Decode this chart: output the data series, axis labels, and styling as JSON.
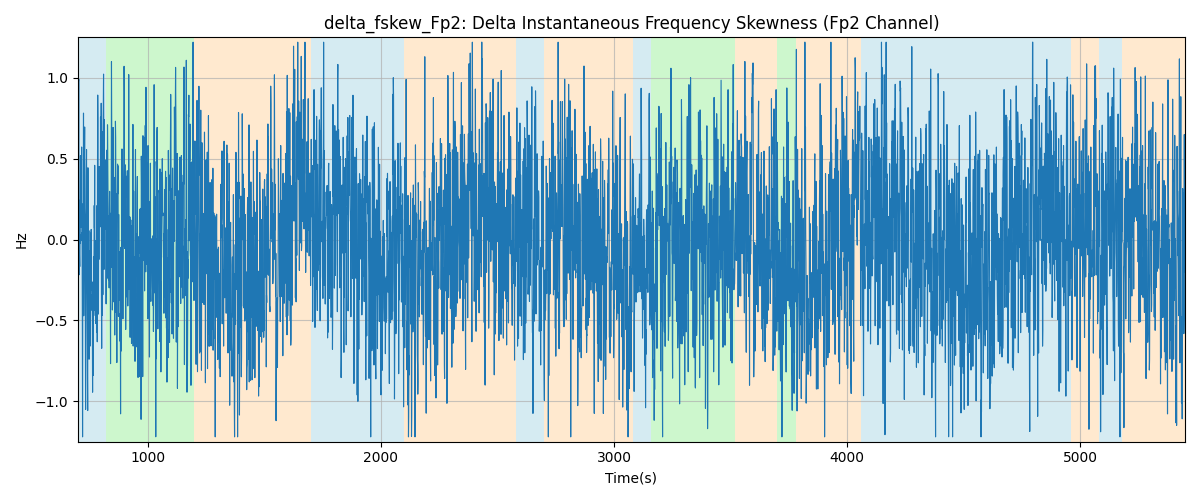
{
  "title": "delta_fskew_Fp2: Delta Instantaneous Frequency Skewness (Fp2 Channel)",
  "xlabel": "Time(s)",
  "ylabel": "Hz",
  "xlim": [
    700,
    5450
  ],
  "ylim": [
    -1.25,
    1.25
  ],
  "yticks": [
    -1.0,
    -0.5,
    0.0,
    0.5,
    1.0
  ],
  "xticks": [
    1000,
    2000,
    3000,
    4000,
    5000
  ],
  "background_regions": [
    {
      "xstart": 700,
      "xend": 820,
      "color": "#add8e6",
      "alpha": 0.5
    },
    {
      "xstart": 820,
      "xend": 1200,
      "color": "#90EE90",
      "alpha": 0.45
    },
    {
      "xstart": 1200,
      "xend": 1700,
      "color": "#FFD5A0",
      "alpha": 0.5
    },
    {
      "xstart": 1700,
      "xend": 2100,
      "color": "#add8e6",
      "alpha": 0.5
    },
    {
      "xstart": 2100,
      "xend": 2580,
      "color": "#FFD5A0",
      "alpha": 0.5
    },
    {
      "xstart": 2580,
      "xend": 2700,
      "color": "#add8e6",
      "alpha": 0.5
    },
    {
      "xstart": 2700,
      "xend": 3080,
      "color": "#FFD5A0",
      "alpha": 0.5
    },
    {
      "xstart": 3080,
      "xend": 3160,
      "color": "#add8e6",
      "alpha": 0.5
    },
    {
      "xstart": 3160,
      "xend": 3520,
      "color": "#90EE90",
      "alpha": 0.45
    },
    {
      "xstart": 3520,
      "xend": 3700,
      "color": "#FFD5A0",
      "alpha": 0.5
    },
    {
      "xstart": 3700,
      "xend": 3780,
      "color": "#90EE90",
      "alpha": 0.45
    },
    {
      "xstart": 3780,
      "xend": 4060,
      "color": "#FFD5A0",
      "alpha": 0.5
    },
    {
      "xstart": 4060,
      "xend": 4960,
      "color": "#add8e6",
      "alpha": 0.5
    },
    {
      "xstart": 4960,
      "xend": 5080,
      "color": "#FFD5A0",
      "alpha": 0.5
    },
    {
      "xstart": 5080,
      "xend": 5180,
      "color": "#add8e6",
      "alpha": 0.5
    },
    {
      "xstart": 5180,
      "xend": 5450,
      "color": "#FFD5A0",
      "alpha": 0.5
    }
  ],
  "line_color": "#1f77b4",
  "line_width": 0.8,
  "grid_color": "#b0b0b0",
  "grid_alpha": 0.7,
  "title_fontsize": 12,
  "figsize": [
    12.0,
    5.0
  ],
  "dpi": 100
}
